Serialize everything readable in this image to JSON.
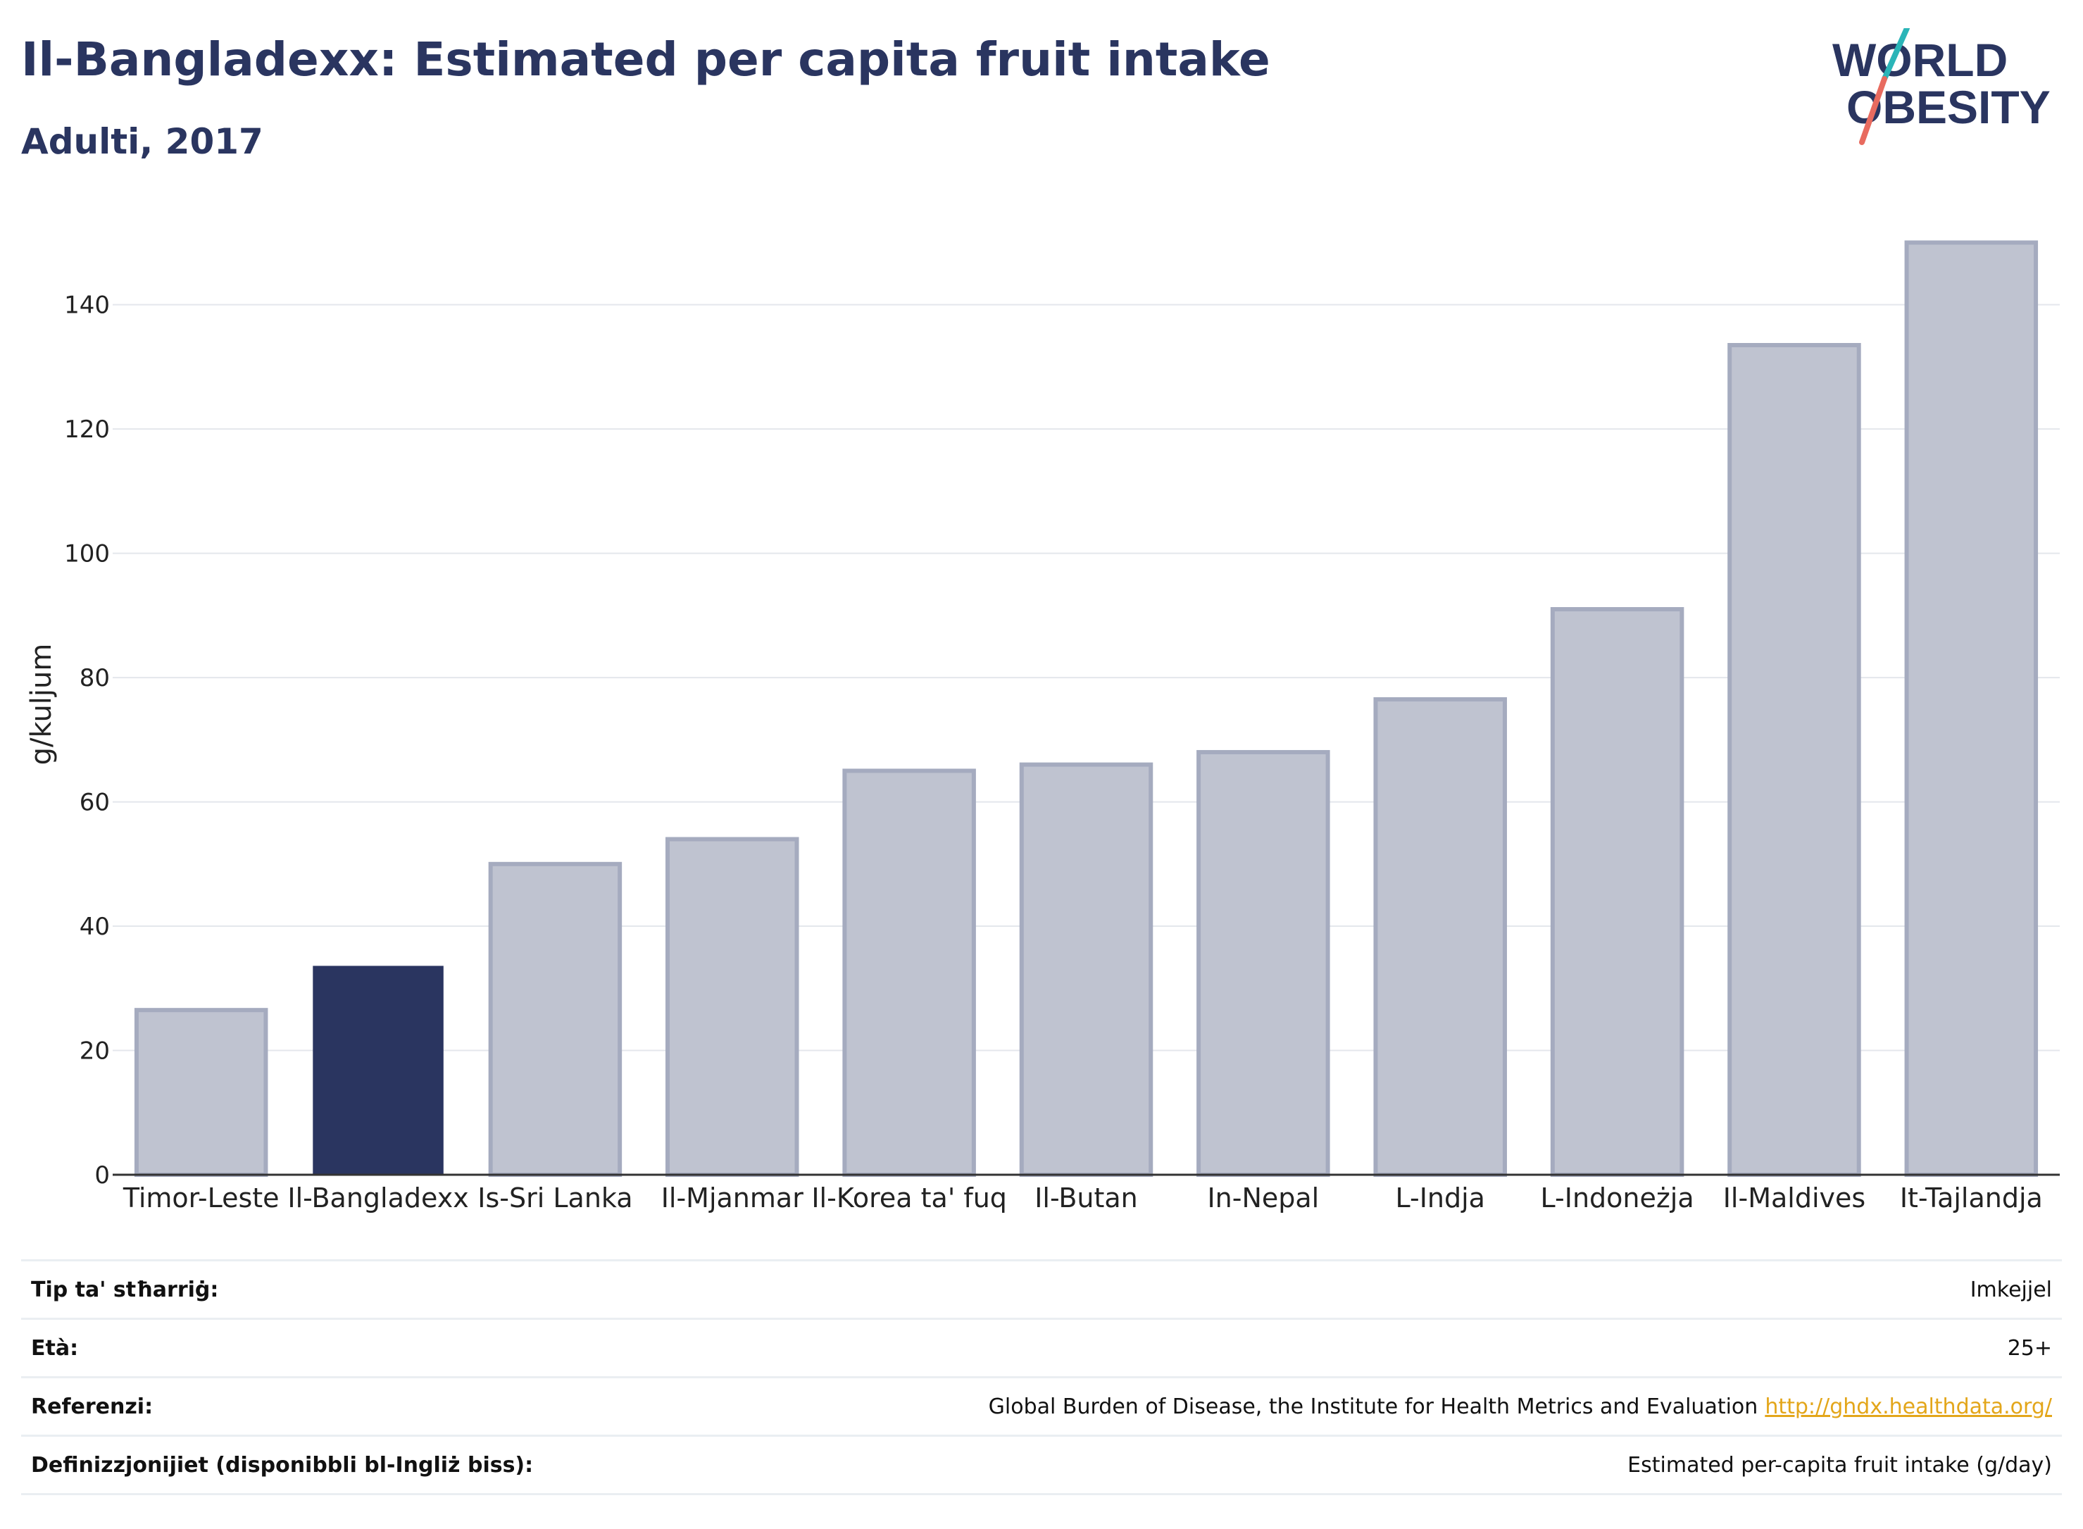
{
  "header": {
    "title": "Il-Bangladexx: Estimated per capita fruit intake",
    "subtitle": "Adulti, 2017"
  },
  "logo": {
    "line1": "WORLD",
    "line2": "OBESITY",
    "colors": {
      "text": "#2a3560",
      "slash_teal": "#2bb5b8",
      "slash_coral": "#e86b5f"
    }
  },
  "colors": {
    "highlight": "#2a3560",
    "bar_fill": "#bfc3d0",
    "bar_stroke": "#a5abbf",
    "grid": "#e4e7ec",
    "axis": "#333333"
  },
  "chart_data": {
    "type": "bar",
    "categories": [
      "Timor-Leste",
      "Il-Bangladexx",
      "Is-Sri Lanka",
      "Il-Mjanmar",
      "Il-Korea ta' fuq",
      "Il-Butan",
      "In-Nepal",
      "L-Indja",
      "L-Indoneżja",
      "Il-Maldives",
      "It-Tajlandja"
    ],
    "values": [
      26.5,
      33.5,
      50,
      54,
      65,
      66,
      68,
      76.5,
      91,
      133.5,
      150
    ],
    "highlight_index": 1,
    "ylabel": "g/kuljum",
    "xlabel": "",
    "ylim": [
      0,
      150
    ],
    "yticks": [
      0,
      20,
      40,
      60,
      80,
      100,
      120,
      140
    ],
    "grid": true
  },
  "meta": {
    "rows": [
      {
        "key": "Tip ta' stħarriġ:",
        "value": "Imkejjel"
      },
      {
        "key": "Età:",
        "value": "25+"
      },
      {
        "key": "Referenzi:",
        "value": "Global Burden of Disease, the Institute for Health Metrics and Evaluation",
        "link": "http://ghdx.healthdata.org/"
      },
      {
        "key": "Definizzjonijiet (disponibbli bl-Ingliż biss):",
        "value": "Estimated per-capita fruit intake (g/day)"
      }
    ]
  }
}
